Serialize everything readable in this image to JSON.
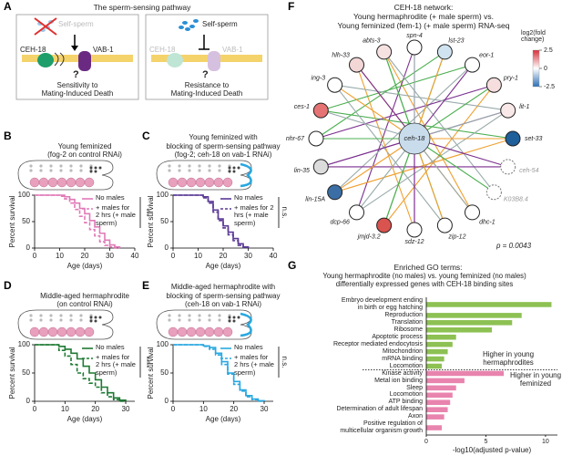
{
  "pathway": {
    "label": "A",
    "title": "The sperm-sensing pathway",
    "left": {
      "sperm": "Self-sperm",
      "ceh18": "CEH-18",
      "vab1": "VAB-1",
      "question": "?",
      "outcome": "Sensitivity to\nMating-Induced Death"
    },
    "right": {
      "sperm": "Self-sperm",
      "ceh18": "CEH-18",
      "vab1": "VAB-1",
      "question": "?",
      "outcome": "Resistance to\nMating-Induced Death"
    }
  },
  "chart_data": [
    {
      "type": "step",
      "label": "B",
      "title": "Young feminized",
      "subtitle": "(fog-2 on control RNAi)",
      "xlabel": "Age (days)",
      "ylabel": "Percent survival",
      "x": [
        0,
        10,
        12,
        14,
        16,
        18,
        20,
        22,
        24,
        26,
        28,
        30,
        32,
        34
      ],
      "series": [
        {
          "name": "No males",
          "color": "#e07ab8",
          "dashed": false,
          "values": [
            100,
            100,
            97,
            92,
            85,
            75,
            65,
            52,
            40,
            28,
            15,
            6,
            2,
            0
          ]
        },
        {
          "name": "+ males for\n2 hrs (+ male\nsperm)",
          "color": "#e07ab8",
          "dashed": true,
          "values": [
            100,
            98,
            93,
            85,
            73,
            60,
            48,
            35,
            23,
            12,
            5,
            2,
            0,
            0
          ]
        }
      ],
      "xlim": [
        0,
        40
      ],
      "xticks": [
        0,
        10,
        20,
        30,
        40
      ],
      "ylim": [
        0,
        100
      ],
      "yticks": [
        0,
        50,
        100
      ],
      "annotation": "***"
    },
    {
      "type": "step",
      "label": "C",
      "title": "Young feminized with\nblocking of sperm-sensing pathway",
      "subtitle": "(fog-2; ceh-18 on vab-1 RNAi)",
      "xlabel": "Age (days)",
      "ylabel": "Percent survival",
      "x": [
        0,
        12,
        14,
        16,
        18,
        20,
        22,
        24,
        26,
        28,
        30
      ],
      "series": [
        {
          "name": "No males",
          "color": "#5b3a96",
          "dashed": false,
          "values": [
            100,
            97,
            88,
            72,
            55,
            42,
            30,
            18,
            8,
            2,
            0
          ]
        },
        {
          "name": "+ males for 2 hrs (+ male sperm)",
          "color": "#5b3a96",
          "dashed": true,
          "values": [
            100,
            95,
            85,
            68,
            52,
            38,
            25,
            14,
            5,
            1,
            0
          ]
        }
      ],
      "xlim": [
        0,
        40
      ],
      "xticks": [
        0,
        10,
        20,
        30,
        40
      ],
      "ylim": [
        0,
        100
      ],
      "yticks": [
        0,
        50,
        100
      ],
      "annotation": "n.s."
    },
    {
      "type": "step",
      "label": "D",
      "title": "Middle-aged hermaphrodite",
      "subtitle": "(on control RNAi)",
      "xlabel": "Age (days)",
      "ylabel": "Percent survival",
      "x": [
        0,
        8,
        10,
        12,
        14,
        16,
        18,
        20,
        22,
        24,
        26,
        28,
        30
      ],
      "series": [
        {
          "name": "No males",
          "color": "#1f7a34",
          "dashed": false,
          "values": [
            100,
            97,
            92,
            85,
            75,
            62,
            50,
            38,
            25,
            15,
            6,
            2,
            0
          ]
        },
        {
          "name": "+ males for\n2 hrs (+ male\nsperm)",
          "color": "#1f7a34",
          "dashed": true,
          "values": [
            100,
            90,
            80,
            65,
            50,
            40,
            32,
            25,
            15,
            8,
            3,
            0,
            0
          ]
        }
      ],
      "xlim": [
        0,
        33
      ],
      "xticks": [
        0,
        10,
        20,
        30
      ],
      "ylim": [
        0,
        100
      ],
      "yticks": [
        0,
        50,
        100
      ],
      "annotation": "****"
    },
    {
      "type": "step",
      "label": "E",
      "title": "Middle-aged hermaphrodite with\nblocking of sperm-sensing pathway",
      "subtitle": "(ceh-18 on vab-1 RNAi)",
      "xlabel": "Age (days)",
      "ylabel": "Percent survival",
      "x": [
        0,
        10,
        12,
        14,
        16,
        18,
        20,
        22,
        24,
        26,
        28,
        30
      ],
      "series": [
        {
          "name": "No males",
          "color": "#29a8e0",
          "dashed": false,
          "values": [
            100,
            98,
            95,
            85,
            70,
            50,
            35,
            20,
            10,
            4,
            1,
            0
          ]
        },
        {
          "name": "+ males for\n2 hrs (+ male\nsperm)",
          "color": "#29a8e0",
          "dashed": true,
          "values": [
            100,
            97,
            92,
            82,
            65,
            48,
            30,
            18,
            8,
            3,
            0,
            0
          ]
        }
      ],
      "xlim": [
        0,
        33
      ],
      "xticks": [
        0,
        10,
        20,
        30
      ],
      "ylim": [
        0,
        100
      ],
      "yticks": [
        0,
        50,
        100
      ],
      "annotation": "n.s."
    },
    {
      "type": "barh",
      "label": "G",
      "title": "Enriched GO terms:",
      "subtitle": "Young hermaphrodite (no males) vs. young feminized (no males)\ndifferentially expressed genes with CEH-18 binding sites",
      "xlabel": "-log10(adjusted p-value)",
      "categories": [
        "Embryo development ending\nin birth or egg hatching",
        "Reproduction",
        "Translation",
        "Ribosome",
        "Apoptotic process",
        "Receptor mediated endocytosis",
        "Mitochondrion",
        "mRNA binding",
        "Locomotion",
        "Kinase activity",
        "Metal ion binding",
        "Sleep",
        "Locomotion",
        "ATP binding",
        "Determination of adult lifespan",
        "Axon",
        "Positive regulation of\nmulticellular organism growth"
      ],
      "values": [
        10.5,
        8,
        7.2,
        5.5,
        2.5,
        2.2,
        1.8,
        1.5,
        1.3,
        6.5,
        3.2,
        2.5,
        2.2,
        2,
        1.8,
        1.5,
        1.3
      ],
      "colors": [
        "#8dc153",
        "#8dc153",
        "#8dc153",
        "#8dc153",
        "#8dc153",
        "#8dc153",
        "#8dc153",
        "#8dc153",
        "#8dc153",
        "#e884ae",
        "#e884ae",
        "#e884ae",
        "#e884ae",
        "#e884ae",
        "#e884ae",
        "#e884ae",
        "#e884ae"
      ],
      "xlim": [
        0,
        11
      ],
      "xticks": [
        0,
        5,
        10
      ],
      "notes": [
        "Higher in young\nhermaphrodites",
        "Higher in young\nfeminized"
      ]
    }
  ],
  "network": {
    "label": "F",
    "title": "CEH-18 network:\nYoung hermaphrodite (+ male sperm) vs.\nYoung feminized (fem-1) (+ male sperm) RNA-seq",
    "center": "ceh-18",
    "nodes": [
      "abts-3",
      "spn-4",
      "lst-23",
      "eor-1",
      "pry-1",
      "lit-1",
      "set-33",
      "ceh-54",
      "K03B8.4",
      "dhc-1",
      "zip-12",
      "sdz-12",
      "jmjd-3.2",
      "dcp-66",
      "lin-15A",
      "lin-35",
      "nhr-67",
      "ces-1",
      "ing-3",
      "hlh-33"
    ],
    "colorbar": {
      "title": "log2(fold\nchange)",
      "lim": [
        -2.5,
        2.5
      ],
      "ticks": [
        2.5,
        0,
        -2.5
      ]
    },
    "pvalue": "p = 0.0043"
  }
}
